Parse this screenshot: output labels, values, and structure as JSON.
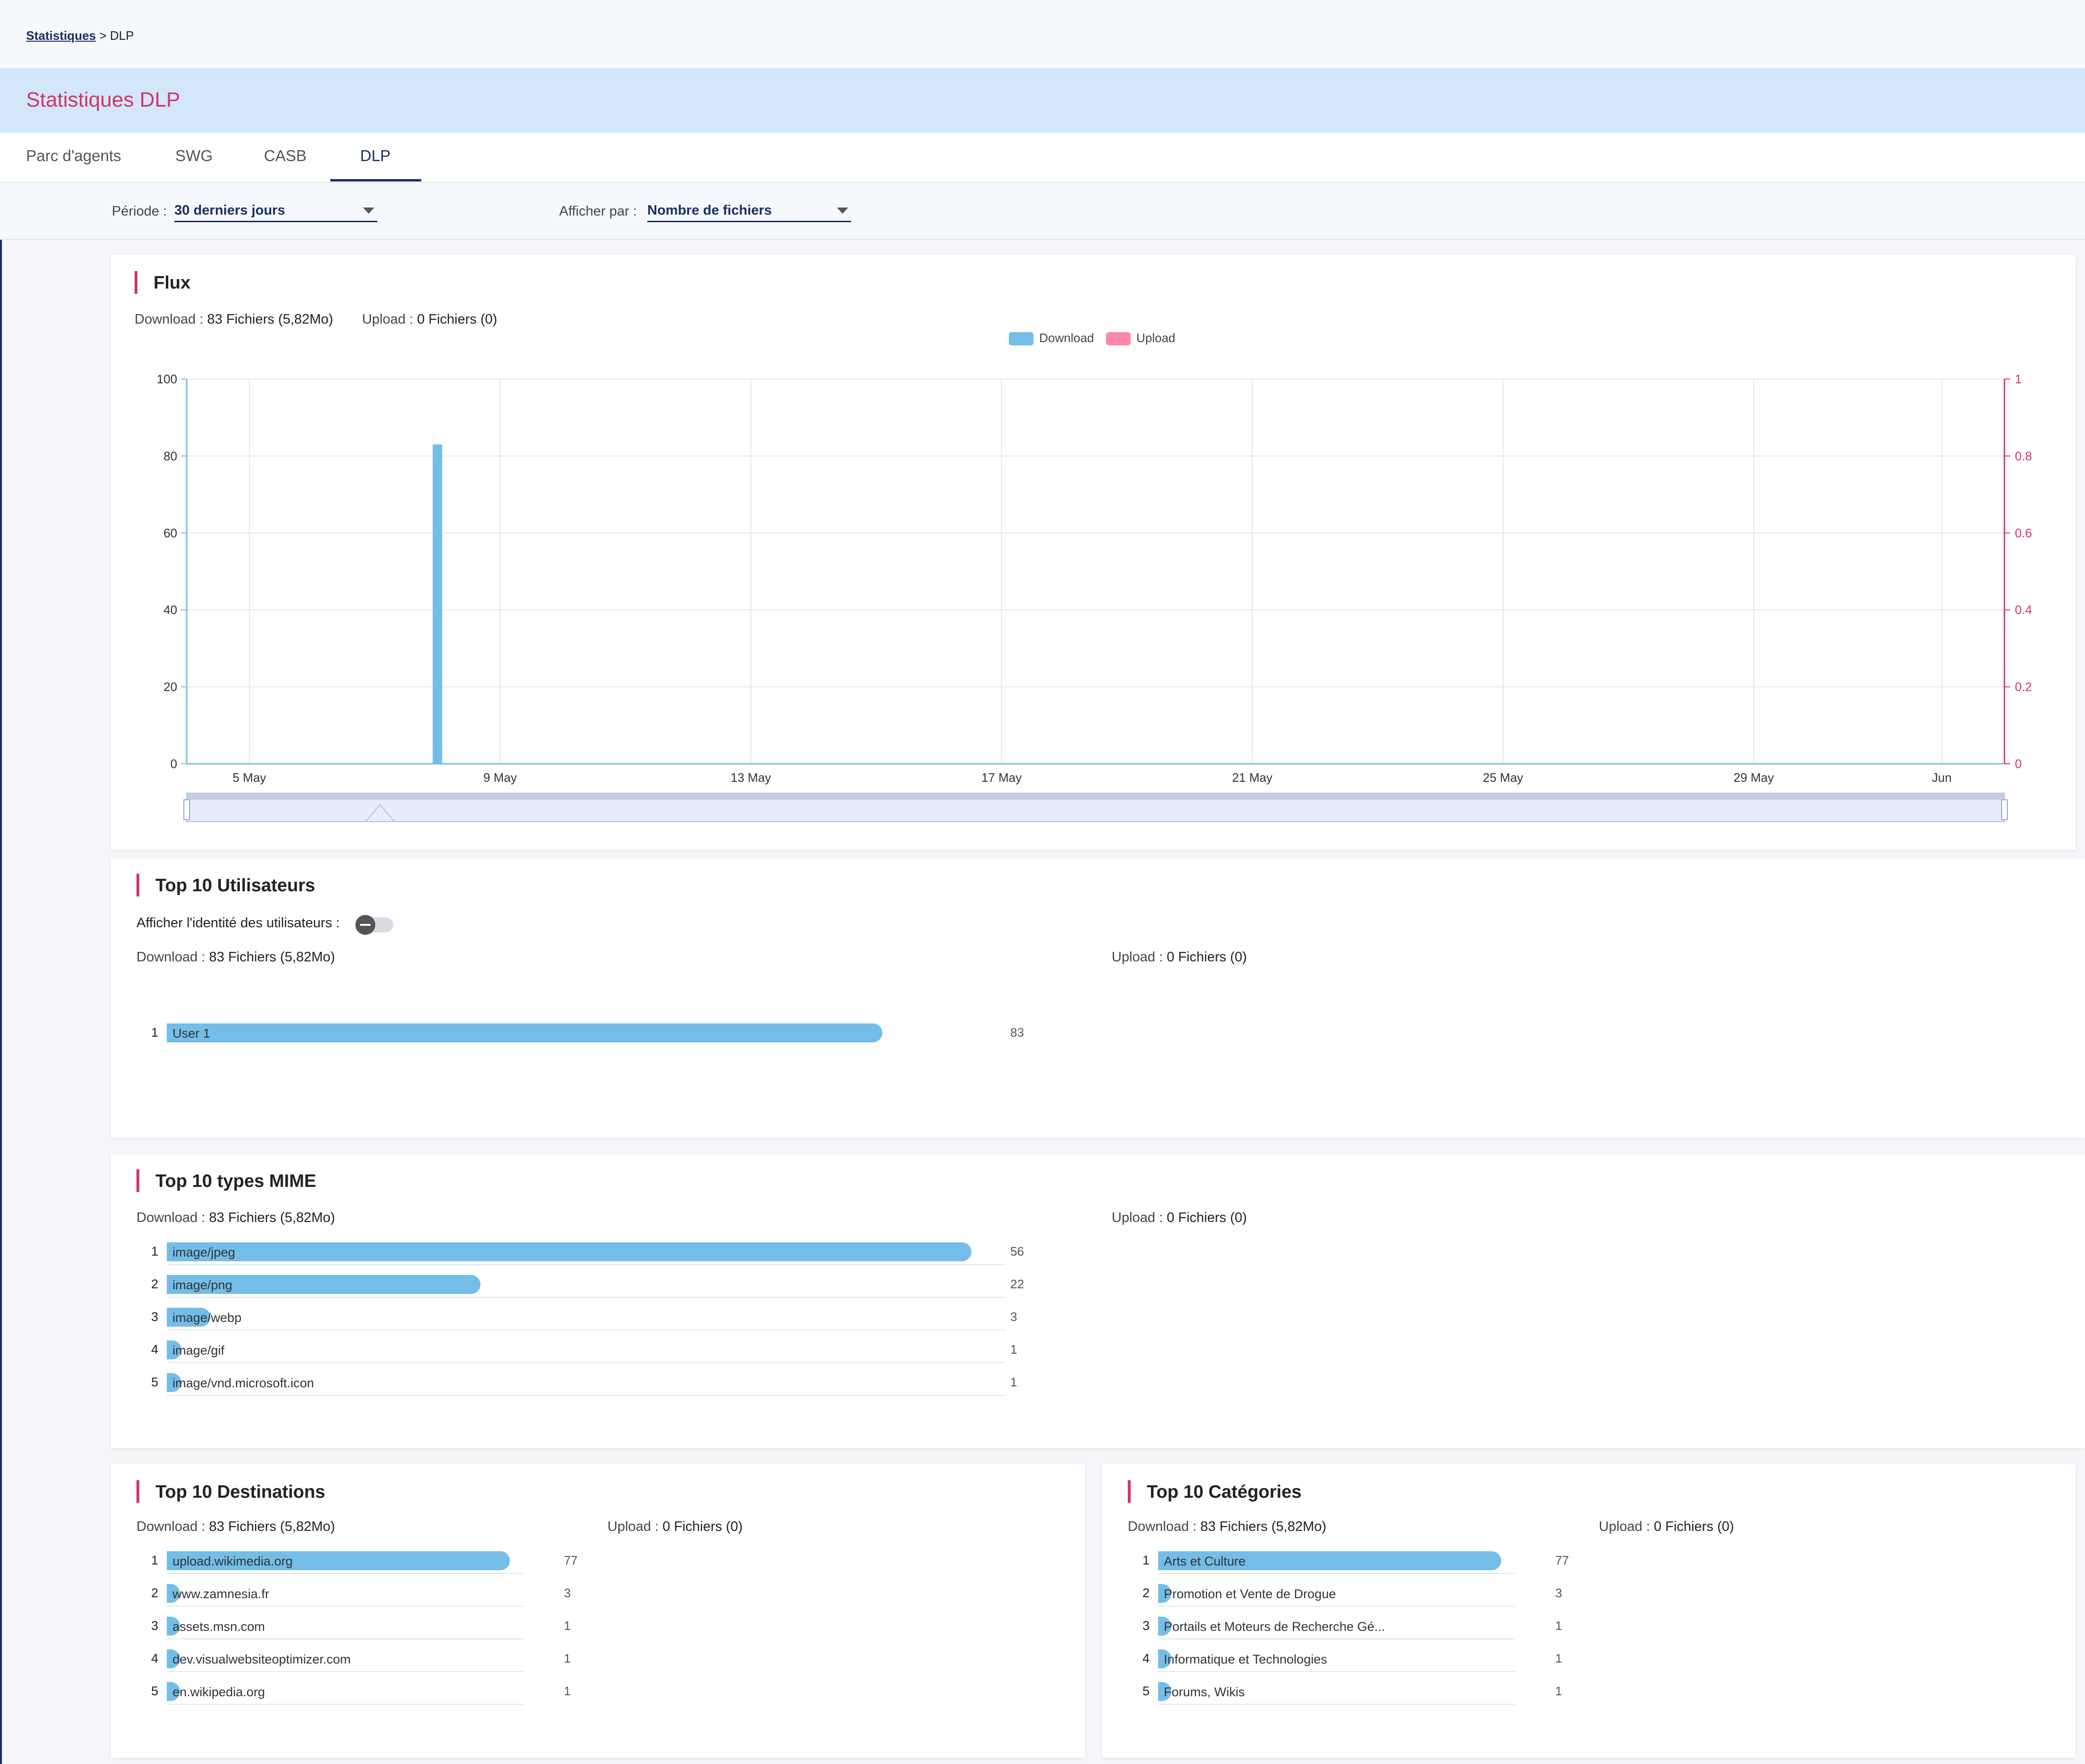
{
  "breadcrumb": {
    "parent": "Statistiques",
    "separator": ">",
    "current": "DLP"
  },
  "page_title": "Statistiques DLP",
  "tabs": [
    {
      "label": "Parc d'agents",
      "active": false
    },
    {
      "label": "SWG",
      "active": false
    },
    {
      "label": "CASB",
      "active": false
    },
    {
      "label": "DLP",
      "active": true
    }
  ],
  "filters": {
    "period_label": "Période :",
    "period_value": "30 derniers jours",
    "display_label": "Afficher par :",
    "display_value": "Nombre de fichiers"
  },
  "colors": {
    "download": "#74bde8",
    "upload": "#ff86a8",
    "accent": "#d0356b",
    "navy": "#1a2e5e"
  },
  "flux": {
    "title": "Flux",
    "download_label": "Download :",
    "download_value": "83 Fichiers (5,82Mo)",
    "upload_label": "Upload :",
    "upload_value": "0 Fichiers (0)",
    "legend_download": "Download",
    "legend_upload": "Upload"
  },
  "chart_data": {
    "type": "bar",
    "x_tick_labels": [
      "5 May",
      "9 May",
      "13 May",
      "17 May",
      "21 May",
      "25 May",
      "29 May",
      "Jun"
    ],
    "y_left_ticks": [
      "0",
      "20",
      "40",
      "60",
      "80",
      "100"
    ],
    "y_right_ticks": [
      "0",
      "0.2",
      "0.4",
      "0.6",
      "0.8",
      "1"
    ],
    "ylim_left": [
      0,
      100
    ],
    "ylim_right": [
      0,
      1
    ],
    "grid": true,
    "legend": "top-center",
    "series": [
      {
        "name": "Download",
        "axis": "left",
        "points": [
          {
            "x": "8 May",
            "y": 83
          }
        ]
      },
      {
        "name": "Upload",
        "axis": "right",
        "points": []
      }
    ]
  },
  "top_users": {
    "title": "Top 10 Utilisateurs",
    "identity_label": "Afficher l'identité des utilisateurs :",
    "download_label": "Download :",
    "download_value": "83 Fichiers (5,82Mo)",
    "upload_label": "Upload :",
    "upload_value": "0 Fichiers (0)",
    "items": [
      {
        "rank": "1",
        "label": "User 1",
        "value": "83",
        "fraction": 1.0
      }
    ]
  },
  "top_mime": {
    "title": "Top 10 types MIME",
    "download_label": "Download :",
    "download_value": "83 Fichiers (5,82Mo)",
    "upload_label": "Upload :",
    "upload_value": "0 Fichiers (0)",
    "items": [
      {
        "rank": "1",
        "label": "image/jpeg",
        "value": "56",
        "fraction": 1.0
      },
      {
        "rank": "2",
        "label": "image/png",
        "value": "22",
        "fraction": 0.39
      },
      {
        "rank": "3",
        "label": "image/webp",
        "value": "3",
        "fraction": 0.054
      },
      {
        "rank": "4",
        "label": "image/gif",
        "value": "1",
        "fraction": 0.018
      },
      {
        "rank": "5",
        "label": "image/vnd.microsoft.icon",
        "value": "1",
        "fraction": 0.018
      }
    ]
  },
  "top_destinations": {
    "title": "Top 10 Destinations",
    "download_label": "Download :",
    "download_value": "83 Fichiers (5,82Mo)",
    "upload_label": "Upload :",
    "upload_value": "0 Fichiers (0)",
    "items": [
      {
        "rank": "1",
        "label": "upload.wikimedia.org",
        "value": "77",
        "fraction": 1.0
      },
      {
        "rank": "2",
        "label": "www.zamnesia.fr",
        "value": "3",
        "fraction": 0.039
      },
      {
        "rank": "3",
        "label": "assets.msn.com",
        "value": "1",
        "fraction": 0.013
      },
      {
        "rank": "4",
        "label": "dev.visualwebsiteoptimizer.com",
        "value": "1",
        "fraction": 0.013
      },
      {
        "rank": "5",
        "label": "en.wikipedia.org",
        "value": "1",
        "fraction": 0.013
      }
    ]
  },
  "top_categories": {
    "title": "Top 10 Catégories",
    "download_label": "Download :",
    "download_value": "83 Fichiers (5,82Mo)",
    "upload_label": "Upload :",
    "upload_value": "0 Fichiers (0)",
    "items": [
      {
        "rank": "1",
        "label": "Arts et Culture",
        "value": "77",
        "fraction": 1.0
      },
      {
        "rank": "2",
        "label": "Promotion et Vente de Drogue",
        "value": "3",
        "fraction": 0.039
      },
      {
        "rank": "3",
        "label": "Portails et Moteurs de Recherche Gé...",
        "value": "1",
        "fraction": 0.013
      },
      {
        "rank": "4",
        "label": "Informatique et Technologies",
        "value": "1",
        "fraction": 0.013
      },
      {
        "rank": "5",
        "label": "Forums, Wikis",
        "value": "1",
        "fraction": 0.013
      }
    ]
  }
}
